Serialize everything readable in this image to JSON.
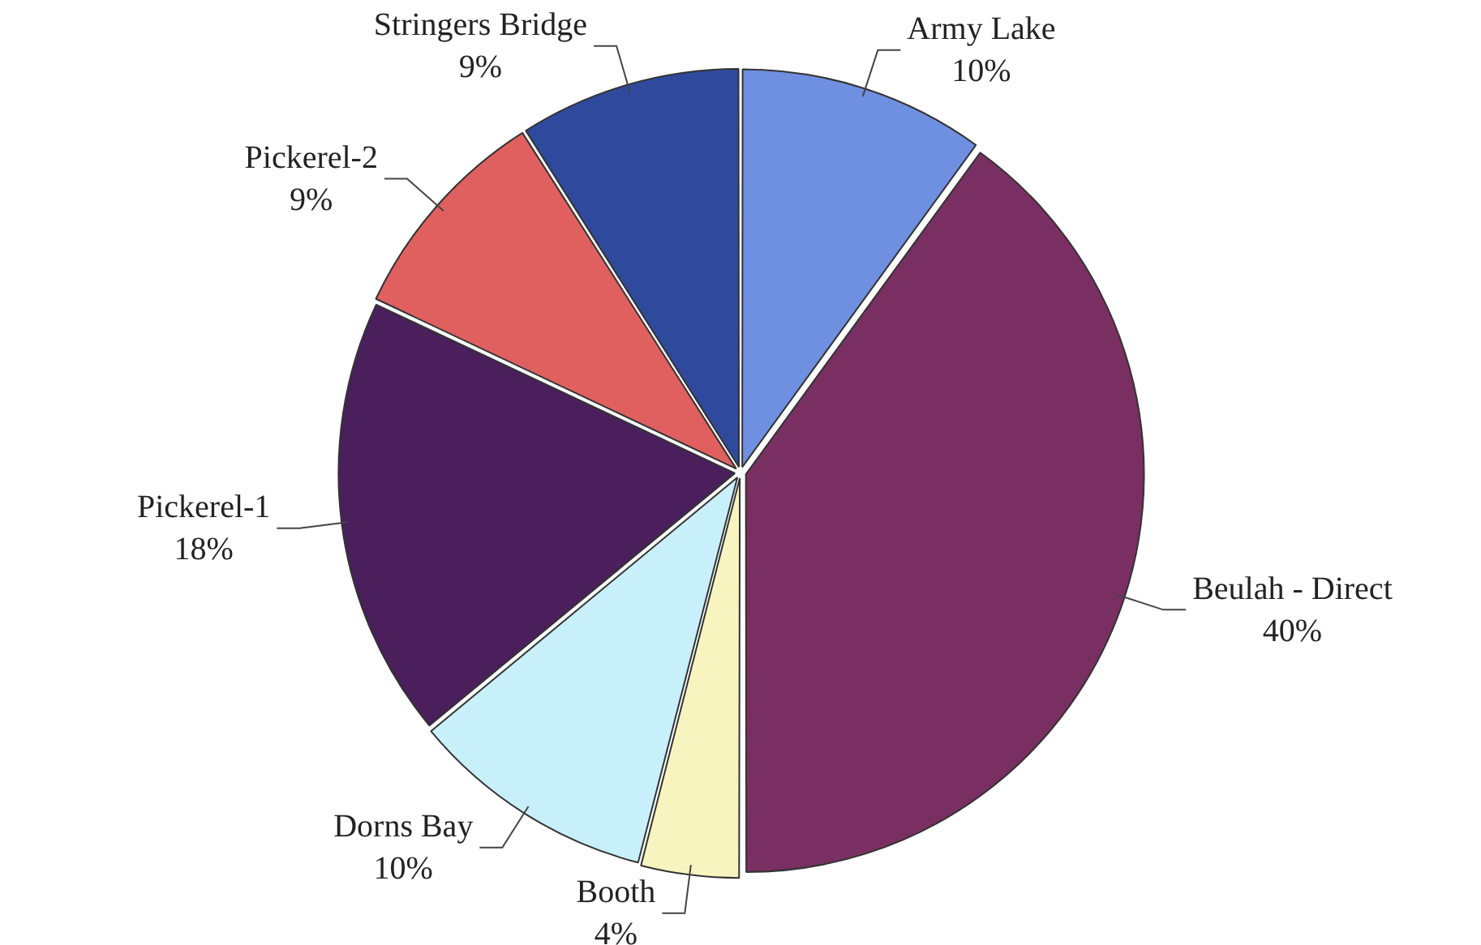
{
  "chart_data": {
    "type": "pie",
    "categories": [
      "Army Lake",
      "Beulah - Direct",
      "Booth",
      "Dorns Bay",
      "Pickerel-1",
      "Pickerel-2",
      "Stringers Bridge"
    ],
    "values": [
      10,
      40,
      4,
      10,
      18,
      9,
      9
    ],
    "value_labels": [
      "10%",
      "40%",
      "4%",
      "10%",
      "18%",
      "9%",
      "9%"
    ],
    "colors": [
      "#6f8fe0",
      "#7a2f62",
      "#f8f4c0",
      "#c8f0fa",
      "#4a1f5c",
      "#e06060",
      "#2f4a9c"
    ]
  }
}
